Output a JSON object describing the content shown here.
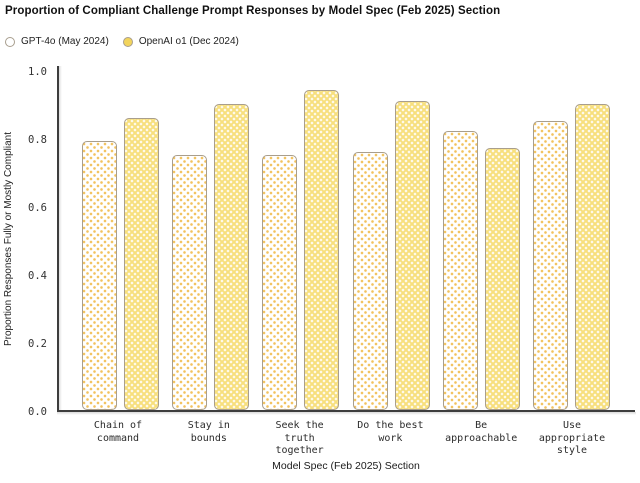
{
  "chart_data": {
    "type": "bar",
    "title": "Proportion of Compliant Challenge Prompt Responses by Model Spec (Feb 2025) Section",
    "xlabel": "Model Spec (Feb 2025) Section",
    "ylabel": "Proportion Responses Fully or Mostly Compliant",
    "categories": [
      "Chain of command",
      "Stay in bounds",
      "Seek the truth together",
      "Do the best work",
      "Be approachable",
      "Use appropriate style"
    ],
    "categories_multiline": [
      "Chain of\ncommand",
      "Stay in\nbounds",
      "Seek the truth\ntogether",
      "Do the best\nwork",
      "Be\napproachable",
      "Use appropriate\nstyle"
    ],
    "series": [
      {
        "name": "GPT-4o (May 2024)",
        "values": [
          0.79,
          0.75,
          0.75,
          0.76,
          0.82,
          0.85
        ]
      },
      {
        "name": "OpenAI o1 (Dec 2024)",
        "values": [
          0.86,
          0.9,
          0.94,
          0.91,
          0.77,
          0.9
        ]
      }
    ],
    "yticks": [
      0.0,
      0.2,
      0.4,
      0.6,
      0.8,
      1.0
    ],
    "ylim": [
      0.0,
      1.0
    ],
    "grid": false,
    "legend_position": "top-left"
  },
  "colors": {
    "background": "#ffffff",
    "axis_line": "#3d3d3d",
    "bar_border": "#a99e8c",
    "gpt4o_fill": "#ffffff",
    "gpt4o_dots": "#f2c25e",
    "o1_fill": "#f7df7d",
    "o1_dots": "#ffffff",
    "o1_legend_marker": "#f2d45c",
    "text": "#1a1a1a"
  }
}
